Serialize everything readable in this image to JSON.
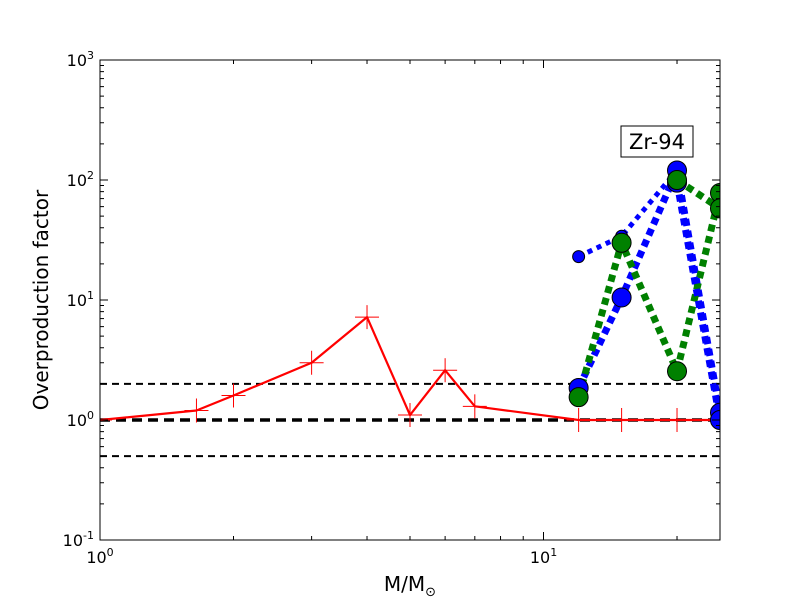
{
  "chart_data": {
    "type": "line",
    "title": "",
    "xlabel": "M/M",
    "xlabel_sub": "⊙",
    "ylabel": "Overproduction factor",
    "xscale": "log",
    "yscale": "log",
    "xlim": [
      1,
      25
    ],
    "ylim": [
      0.1,
      1000
    ],
    "x_ticks": [
      {
        "base": "10",
        "exp": "0",
        "value": 1
      },
      {
        "base": "10",
        "exp": "1",
        "value": 10
      }
    ],
    "y_ticks": [
      {
        "base": "10",
        "exp": "-1",
        "value": 0.1
      },
      {
        "base": "10",
        "exp": "0",
        "value": 1
      },
      {
        "base": "10",
        "exp": "1",
        "value": 10
      },
      {
        "base": "10",
        "exp": "2",
        "value": 100
      },
      {
        "base": "10",
        "exp": "3",
        "value": 1000
      }
    ],
    "grid": false,
    "annotation": {
      "text": "Zr-94",
      "x": 18.2,
      "y": 200
    },
    "reference_lines": [
      {
        "y": 2.0,
        "style": "dashed",
        "color": "#000000",
        "weight": "thin"
      },
      {
        "y": 1.0,
        "style": "dashed",
        "color": "#000000",
        "weight": "thick"
      },
      {
        "y": 0.5,
        "style": "dashed",
        "color": "#000000",
        "weight": "thin"
      }
    ],
    "series": [
      {
        "color": "#ff0000",
        "line": "solid",
        "marker": "plus",
        "x": [
          1.0,
          1.65,
          2.0,
          3.0,
          4.0,
          5.0,
          6.0,
          7.0,
          12.0,
          15.0,
          20.0,
          25.0
        ],
        "y": [
          1.0,
          1.2,
          1.6,
          3.0,
          7.2,
          1.1,
          2.6,
          1.3,
          1.0,
          1.0,
          1.0,
          1.0
        ]
      },
      {
        "color": "#0000ff",
        "line": "dotted",
        "marker": "circle",
        "marker_size": "small",
        "x": [
          12.0,
          15.0,
          20.0
        ],
        "y": [
          23.0,
          34.0,
          120.0
        ]
      },
      {
        "color": "#0000ff",
        "line": "dotted",
        "marker": "circle",
        "marker_size": "large",
        "x": [
          12.0,
          15.0,
          20.0,
          25.0
        ],
        "y": [
          1.85,
          10.5,
          120.0,
          1.15
        ]
      },
      {
        "color": "#008000",
        "line": "dotted",
        "marker": "circle",
        "marker_size": "large",
        "x": [
          12.0,
          15.0,
          20.0,
          25.0
        ],
        "y": [
          1.55,
          30.0,
          2.55,
          78.0
        ]
      },
      {
        "color": "#0000ff",
        "line": "dotted",
        "marker": "circle",
        "marker_size": "large",
        "x": [
          20.0,
          25.0
        ],
        "y": [
          95.0,
          1.0
        ]
      },
      {
        "color": "#008000",
        "line": "dotted",
        "marker": "circle",
        "marker_size": "large",
        "x": [
          20.0,
          25.0
        ],
        "y": [
          100.0,
          58.0
        ]
      }
    ]
  }
}
